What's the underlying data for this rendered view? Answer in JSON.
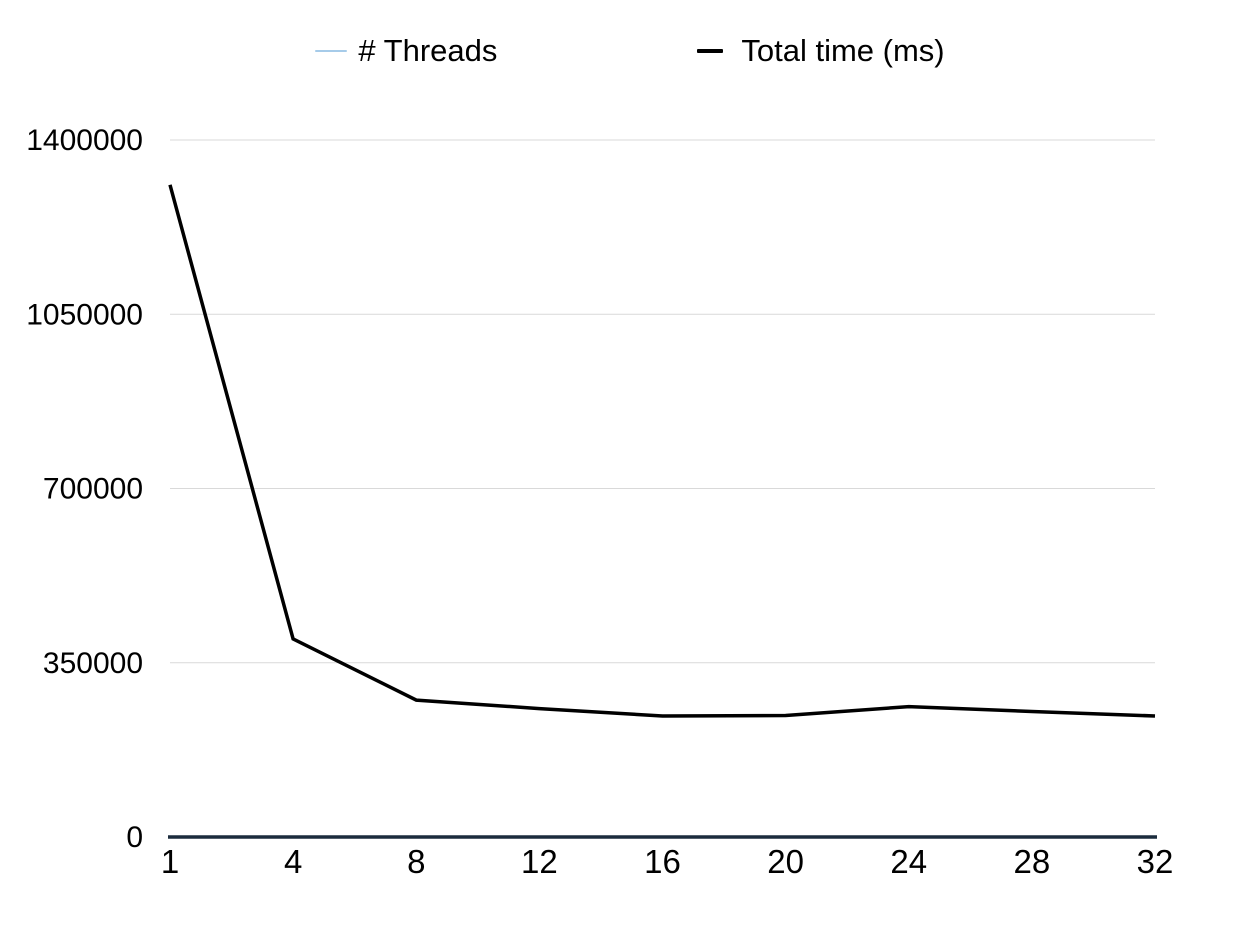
{
  "legend": {
    "items": [
      {
        "label": "# Threads",
        "color": "#a6cbe9"
      },
      {
        "label": "Total time (ms)",
        "color": "#000000"
      }
    ]
  },
  "chart_data": {
    "type": "line",
    "title": "",
    "xlabel": "",
    "ylabel": "",
    "categories": [
      "1",
      "4",
      "8",
      "12",
      "16",
      "20",
      "24",
      "28",
      "32"
    ],
    "series": [
      {
        "name": "# Threads",
        "color": "#a6cbe9",
        "stroke_width": 1.5,
        "values": [
          1,
          4,
          8,
          12,
          16,
          20,
          24,
          28,
          32
        ]
      },
      {
        "name": "Total time (ms)",
        "color": "#000000",
        "stroke_width": 3.5,
        "values": [
          1310000,
          398000,
          275000,
          258000,
          243000,
          244000,
          262000,
          252000,
          243000
        ]
      }
    ],
    "ylim": [
      0,
      1400000
    ],
    "y_ticks": [
      0,
      350000,
      700000,
      1050000,
      1400000
    ],
    "y_tick_labels": [
      "0",
      "350000",
      "700000",
      "1050000",
      "1400000"
    ],
    "grid": true,
    "legend_position": "top",
    "colors": {
      "background": "#ffffff",
      "gridline": "#d9d9d9",
      "axis": "#1b2c3d",
      "text": "#000000"
    }
  }
}
